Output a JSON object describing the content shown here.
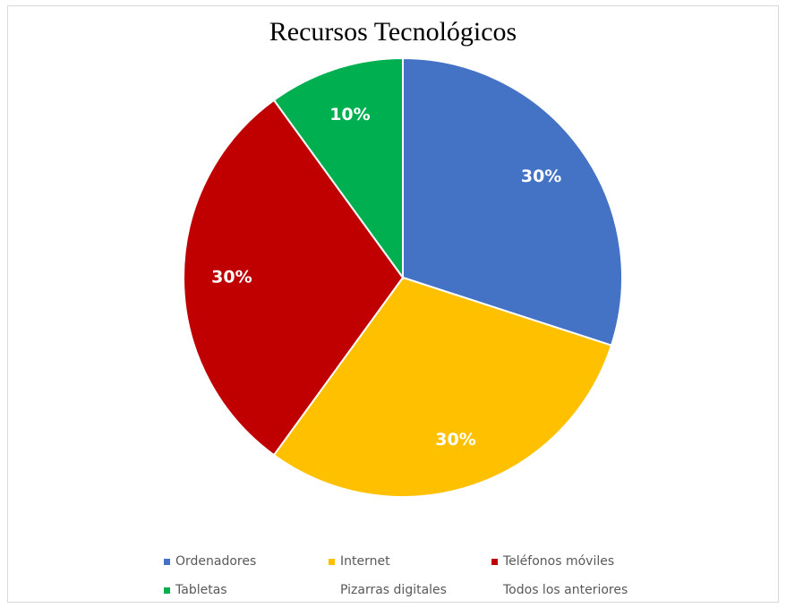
{
  "chart_data": {
    "type": "pie",
    "title": "Recursos Tecnológicos",
    "categories": [
      "Ordenadores",
      "Internet",
      "Teléfonos móviles",
      "Tabletas",
      "Pizarras digitales",
      "Todos los anteriores"
    ],
    "values": [
      30,
      30,
      30,
      10,
      0,
      0
    ],
    "data_labels": [
      "30%",
      "30%",
      "30%",
      "10%",
      "",
      ""
    ],
    "colors": [
      "#4472c4",
      "#ffc000",
      "#c00000",
      "#00b050",
      "#ffffff",
      "#ffffff"
    ],
    "legend_position": "bottom"
  }
}
